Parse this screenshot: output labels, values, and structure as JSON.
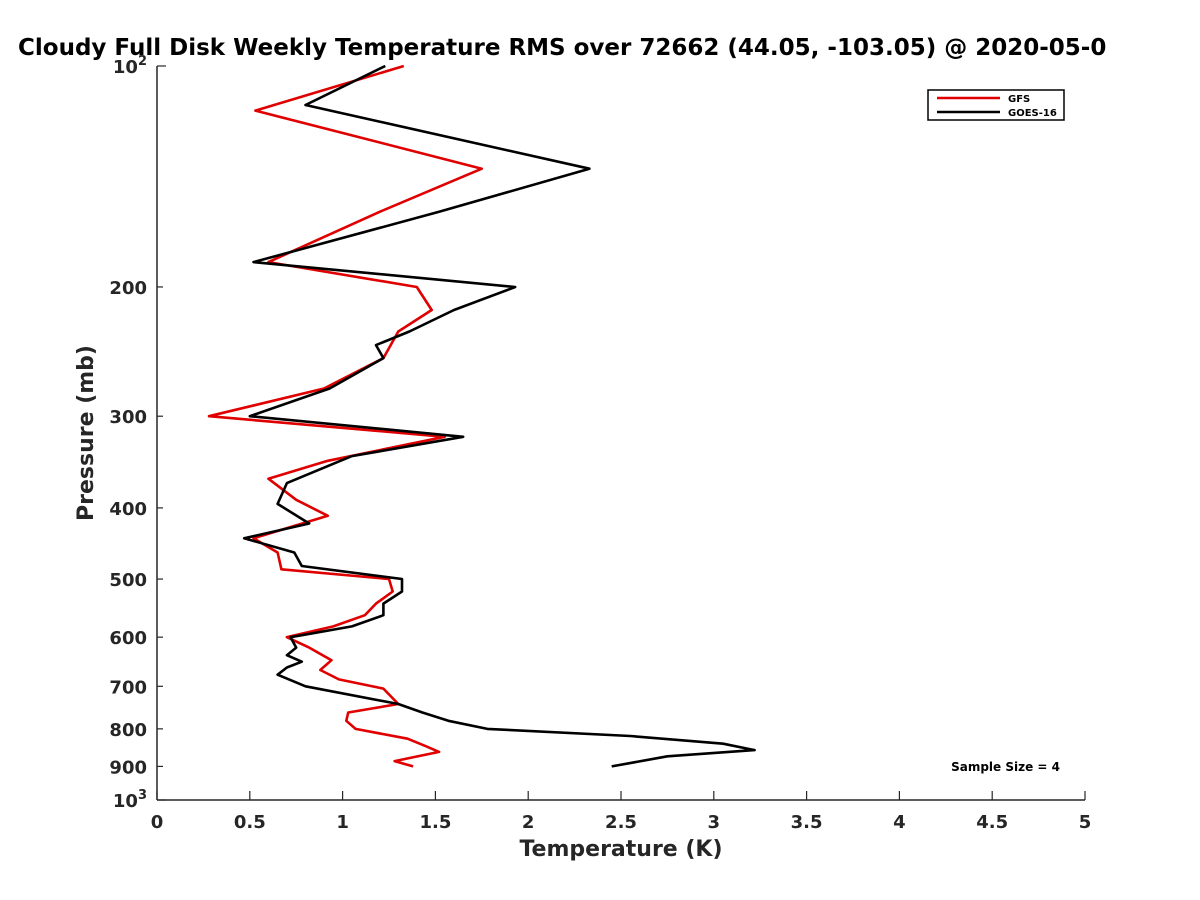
{
  "chart_data": {
    "type": "line",
    "title": "Cloudy Full Disk Weekly Temperature RMS over 72662 (44.05, -103.05) @ 2020-05-0",
    "xlabel": "Temperature (K)",
    "ylabel": "Pressure (mb)",
    "xlim": [
      0,
      5
    ],
    "ylim": [
      100,
      1000
    ],
    "y_scale": "log",
    "y_reversed": true,
    "grid": false,
    "legend_position": "top-right",
    "x_ticks": [
      0,
      0.5,
      1,
      1.5,
      2,
      2.5,
      3,
      3.5,
      4,
      4.5,
      5
    ],
    "x_tick_labels": [
      "0",
      "0.5",
      "1",
      "1.5",
      "2",
      "2.5",
      "3",
      "3.5",
      "4",
      "4.5",
      "5"
    ],
    "y_ticks": [
      100,
      200,
      300,
      400,
      500,
      600,
      700,
      800,
      900,
      1000
    ],
    "y_tick_labels": [
      {
        "base": "10",
        "exp": "2"
      },
      {
        "base": "200",
        "exp": ""
      },
      {
        "base": "300",
        "exp": ""
      },
      {
        "base": "400",
        "exp": ""
      },
      {
        "base": "500",
        "exp": ""
      },
      {
        "base": "600",
        "exp": ""
      },
      {
        "base": "700",
        "exp": ""
      },
      {
        "base": "800",
        "exp": ""
      },
      {
        "base": "900",
        "exp": ""
      },
      {
        "base": "10",
        "exp": "3"
      }
    ],
    "annotation": "Sample Size = 4",
    "series": [
      {
        "name": "GFS",
        "color": "#e00000",
        "points": [
          {
            "x": 1.33,
            "p": 100
          },
          {
            "x": 0.53,
            "p": 115
          },
          {
            "x": 1.75,
            "p": 138
          },
          {
            "x": 1.2,
            "p": 158
          },
          {
            "x": 0.6,
            "p": 185
          },
          {
            "x": 1.4,
            "p": 200
          },
          {
            "x": 1.48,
            "p": 215
          },
          {
            "x": 1.3,
            "p": 230
          },
          {
            "x": 1.22,
            "p": 250
          },
          {
            "x": 0.9,
            "p": 275
          },
          {
            "x": 0.28,
            "p": 300
          },
          {
            "x": 1.55,
            "p": 320
          },
          {
            "x": 0.92,
            "p": 345
          },
          {
            "x": 0.6,
            "p": 365
          },
          {
            "x": 0.75,
            "p": 390
          },
          {
            "x": 0.92,
            "p": 410
          },
          {
            "x": 0.52,
            "p": 440
          },
          {
            "x": 0.65,
            "p": 460
          },
          {
            "x": 0.67,
            "p": 485
          },
          {
            "x": 1.25,
            "p": 500
          },
          {
            "x": 1.27,
            "p": 520
          },
          {
            "x": 1.18,
            "p": 540
          },
          {
            "x": 1.12,
            "p": 560
          },
          {
            "x": 0.95,
            "p": 580
          },
          {
            "x": 0.7,
            "p": 600
          },
          {
            "x": 0.82,
            "p": 620
          },
          {
            "x": 0.94,
            "p": 645
          },
          {
            "x": 0.88,
            "p": 665
          },
          {
            "x": 0.98,
            "p": 685
          },
          {
            "x": 1.22,
            "p": 705
          },
          {
            "x": 1.3,
            "p": 740
          },
          {
            "x": 1.03,
            "p": 760
          },
          {
            "x": 1.02,
            "p": 780
          },
          {
            "x": 1.07,
            "p": 800
          },
          {
            "x": 1.35,
            "p": 825
          },
          {
            "x": 1.45,
            "p": 845
          },
          {
            "x": 1.52,
            "p": 860
          },
          {
            "x": 1.28,
            "p": 885
          },
          {
            "x": 1.38,
            "p": 900
          }
        ]
      },
      {
        "name": "GOES-16",
        "color": "#000000",
        "points": [
          {
            "x": 1.23,
            "p": 100
          },
          {
            "x": 0.8,
            "p": 113
          },
          {
            "x": 2.33,
            "p": 138
          },
          {
            "x": 1.52,
            "p": 158
          },
          {
            "x": 0.52,
            "p": 185
          },
          {
            "x": 1.93,
            "p": 200
          },
          {
            "x": 1.6,
            "p": 215
          },
          {
            "x": 1.36,
            "p": 230
          },
          {
            "x": 1.18,
            "p": 240
          },
          {
            "x": 1.22,
            "p": 250
          },
          {
            "x": 0.93,
            "p": 275
          },
          {
            "x": 0.5,
            "p": 300
          },
          {
            "x": 1.65,
            "p": 320
          },
          {
            "x": 1.05,
            "p": 340
          },
          {
            "x": 0.7,
            "p": 370
          },
          {
            "x": 0.65,
            "p": 395
          },
          {
            "x": 0.82,
            "p": 420
          },
          {
            "x": 0.47,
            "p": 440
          },
          {
            "x": 0.74,
            "p": 460
          },
          {
            "x": 0.78,
            "p": 480
          },
          {
            "x": 1.32,
            "p": 500
          },
          {
            "x": 1.32,
            "p": 520
          },
          {
            "x": 1.22,
            "p": 540
          },
          {
            "x": 1.22,
            "p": 560
          },
          {
            "x": 1.05,
            "p": 580
          },
          {
            "x": 0.72,
            "p": 600
          },
          {
            "x": 0.75,
            "p": 620
          },
          {
            "x": 0.7,
            "p": 635
          },
          {
            "x": 0.78,
            "p": 648
          },
          {
            "x": 0.7,
            "p": 660
          },
          {
            "x": 0.65,
            "p": 675
          },
          {
            "x": 0.8,
            "p": 700
          },
          {
            "x": 1.3,
            "p": 740
          },
          {
            "x": 1.43,
            "p": 760
          },
          {
            "x": 1.57,
            "p": 780
          },
          {
            "x": 1.78,
            "p": 800
          },
          {
            "x": 2.55,
            "p": 818
          },
          {
            "x": 3.05,
            "p": 838
          },
          {
            "x": 3.22,
            "p": 855
          },
          {
            "x": 2.75,
            "p": 872
          },
          {
            "x": 2.45,
            "p": 900
          }
        ]
      }
    ]
  }
}
